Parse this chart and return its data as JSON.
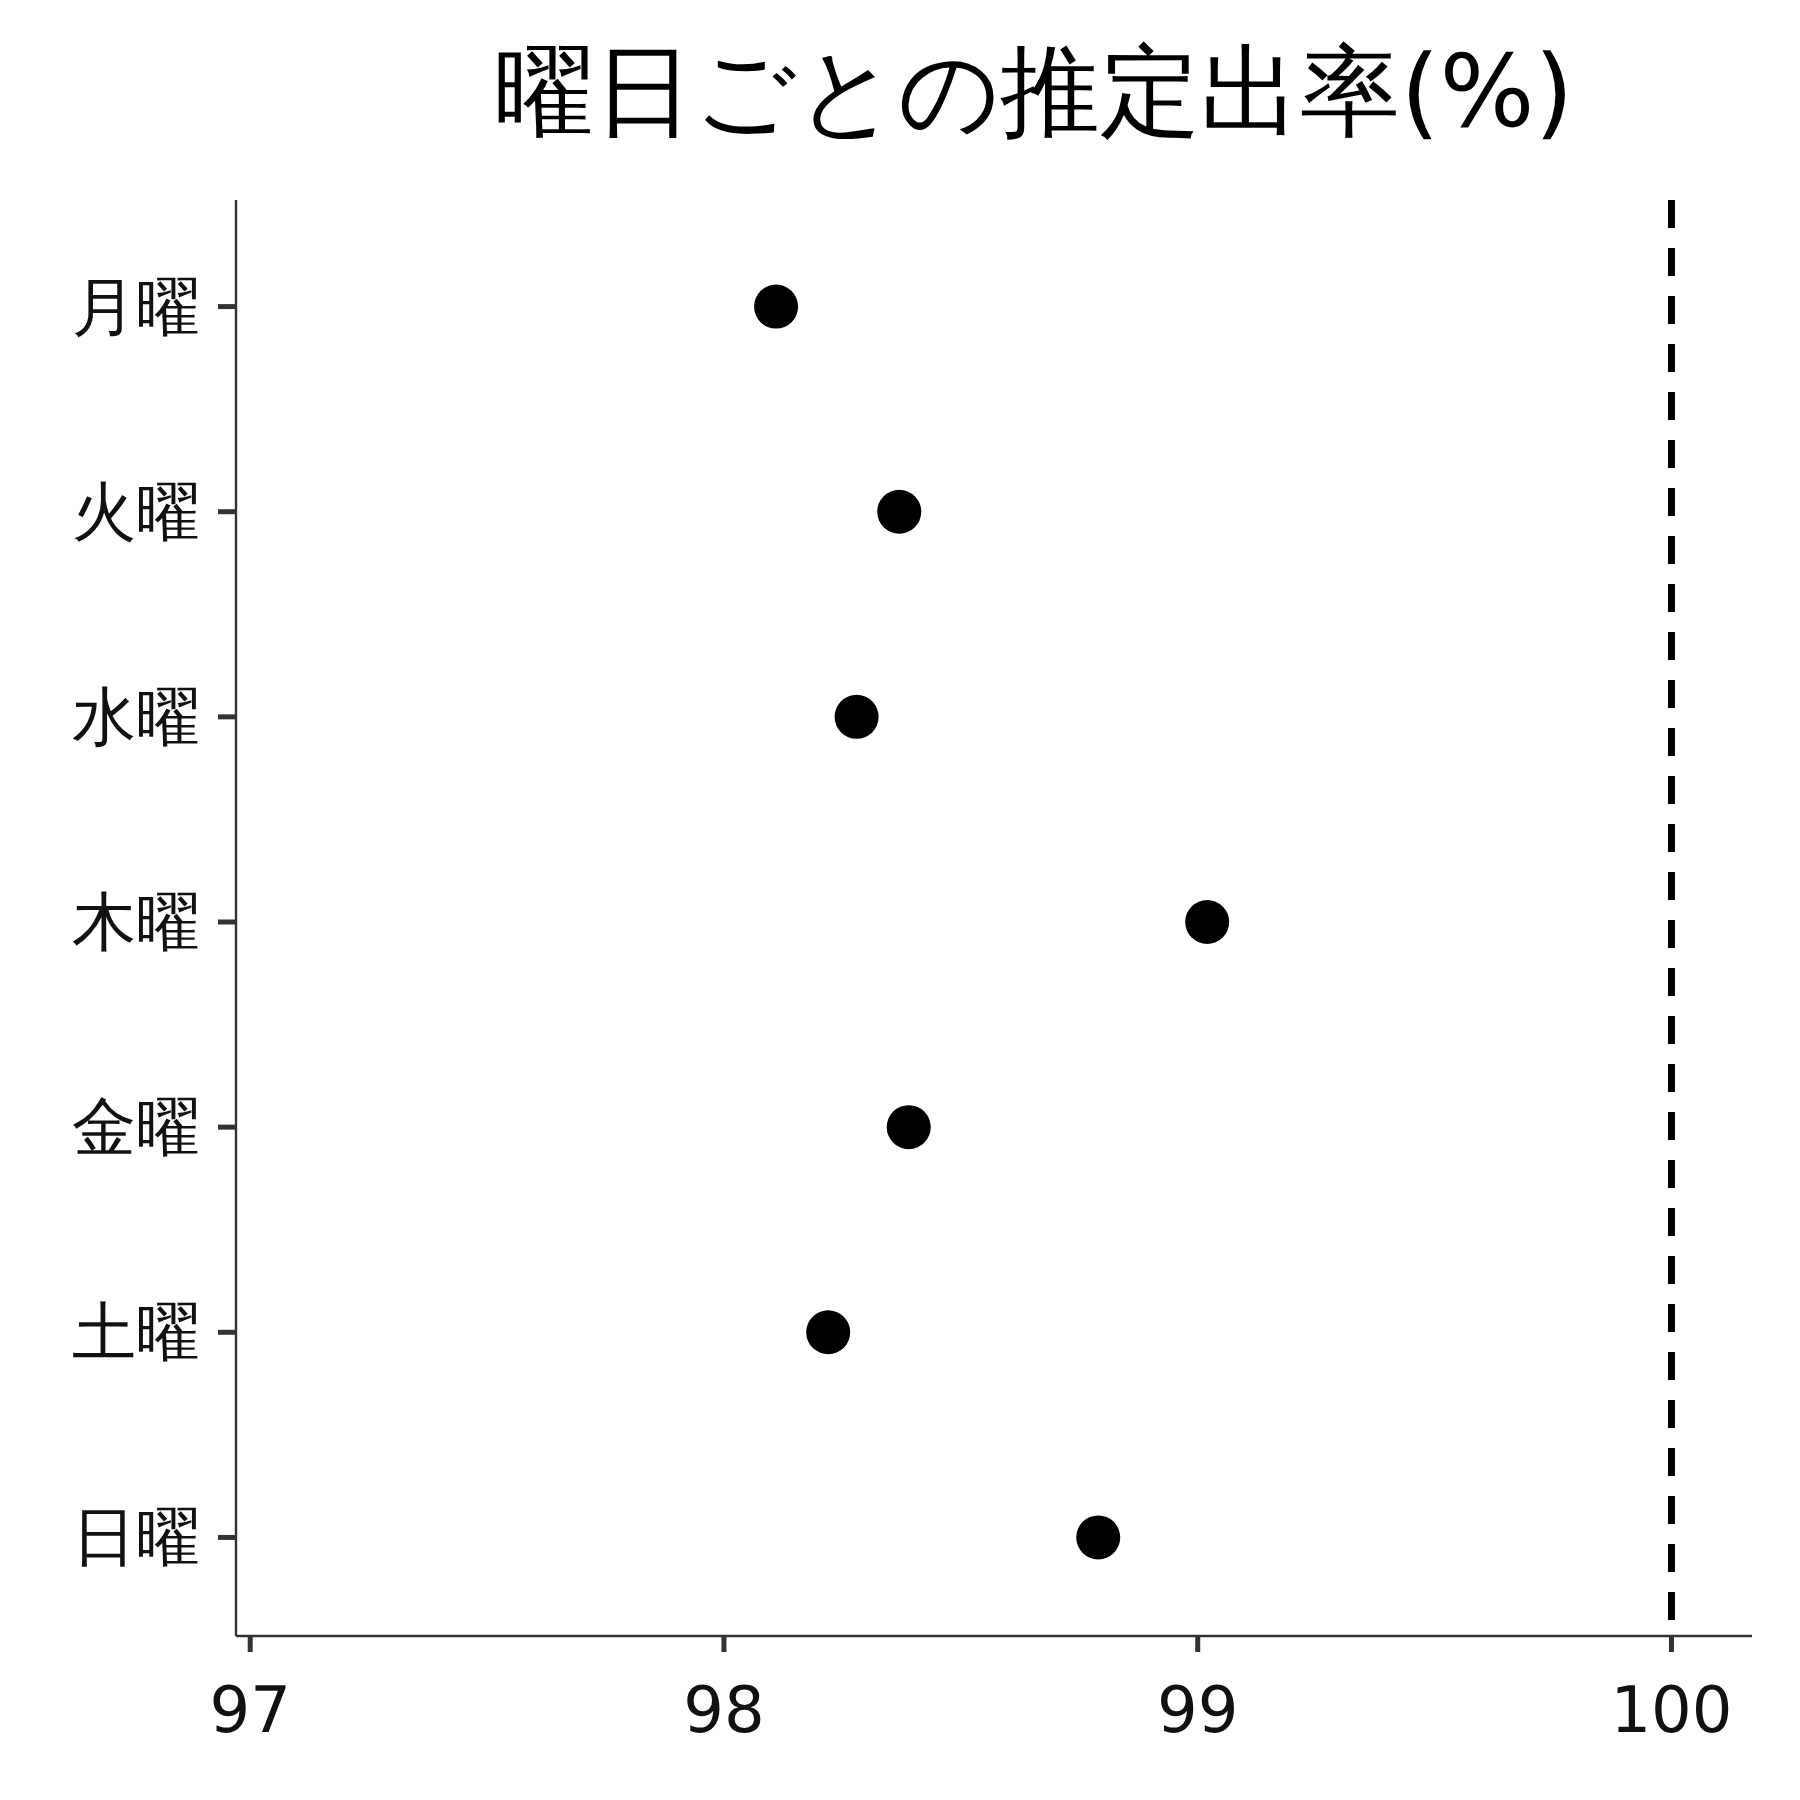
{
  "chart_data": {
    "type": "scatter",
    "orientation": "horizontal",
    "title": "曜日ごとの推定出率(%)",
    "categories": [
      "月曜",
      "火曜",
      "水曜",
      "木曜",
      "金曜",
      "土曜",
      "日曜"
    ],
    "values": [
      98.11,
      98.37,
      98.28,
      99.02,
      98.39,
      98.22,
      98.79
    ],
    "color": "#000000",
    "marker": "circle",
    "xlim": [
      96.97,
      100.17
    ],
    "xticks": [
      97,
      98,
      99,
      100
    ],
    "ref_lines": [
      {
        "axis": "x",
        "value": 100,
        "color": "#000000",
        "line_style": "dashed"
      }
    ]
  }
}
